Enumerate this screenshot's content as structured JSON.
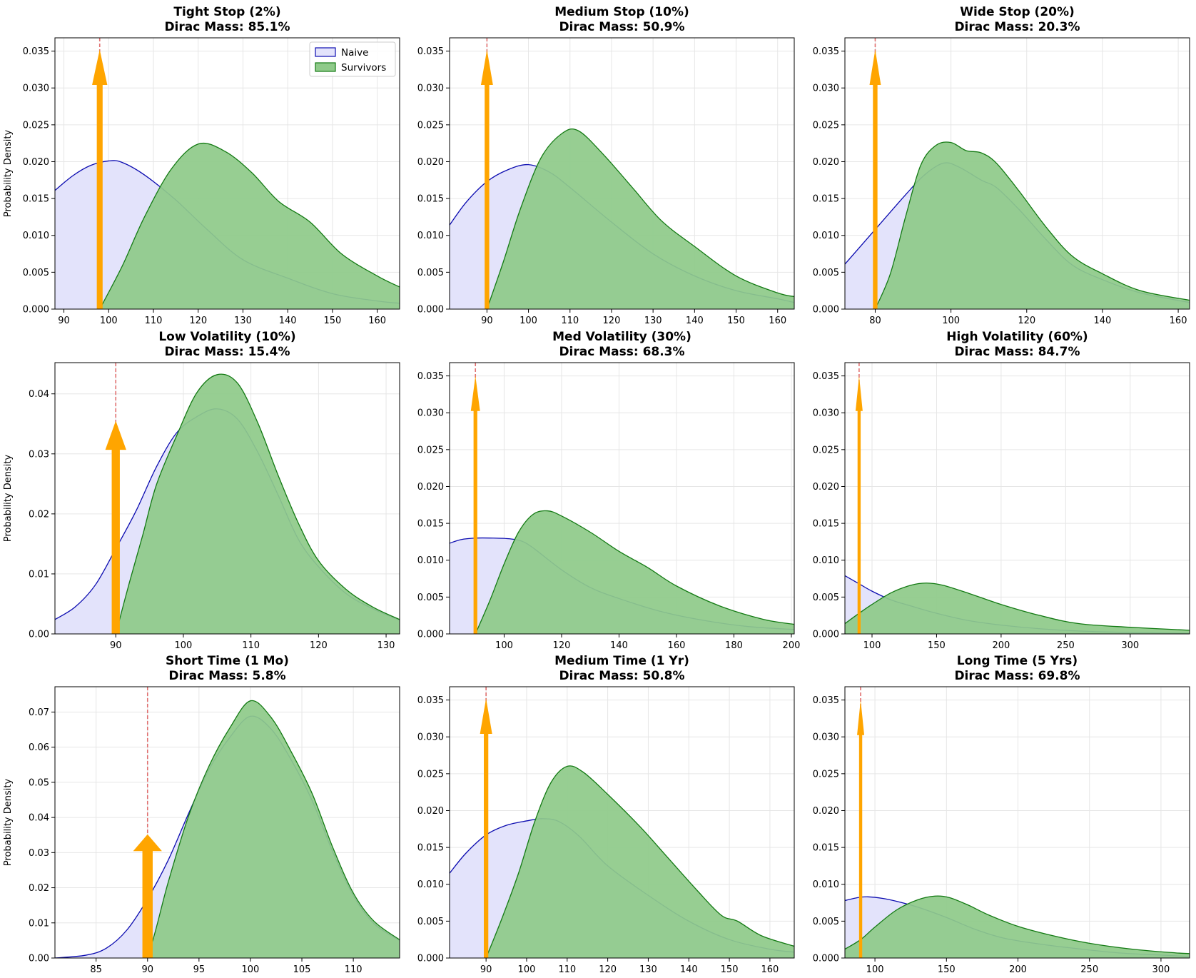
{
  "colors": {
    "naive_line": "#0b0bb0",
    "naive_fill": "#e3e3fb",
    "survivor_line": "#137a13",
    "survivor_fill": "#8fca8a",
    "arrow": "#ffa500",
    "stop_line": "#e07070"
  },
  "chart_data": [
    {
      "type": "area",
      "title": "Tight Stop (2%)",
      "subtitle": "Dirac Mass: 85.1%",
      "ylabel": "Probability Density",
      "show_legend": true,
      "legend_position": "upper-right",
      "legend": [
        "Naive",
        "Survivors"
      ],
      "xlim": [
        88,
        165
      ],
      "ylim": [
        0,
        0.0368
      ],
      "xticks": [
        90,
        100,
        110,
        120,
        130,
        140,
        150,
        160
      ],
      "yticks": [
        0,
        0.005,
        0.01,
        0.015,
        0.02,
        0.025,
        0.03,
        0.035
      ],
      "ytick_labels": [
        "0.000",
        "0.005",
        "0.010",
        "0.015",
        "0.020",
        "0.025",
        "0.030",
        "0.035"
      ],
      "stop": 98,
      "arrow_top": 0.0352,
      "arrow_head_width": 3.4,
      "arrow_shaft_width": 1.3,
      "series": [
        {
          "name": "Naive",
          "x": [
            88,
            92,
            96,
            100,
            103,
            108,
            115,
            122,
            130,
            140,
            150,
            160,
            165
          ],
          "y": [
            0.0161,
            0.0181,
            0.0195,
            0.0201,
            0.0199,
            0.0182,
            0.0148,
            0.0108,
            0.0067,
            0.0042,
            0.0021,
            0.0011,
            0.0008
          ]
        },
        {
          "name": "Survivors",
          "x": [
            88,
            98,
            103,
            108,
            114,
            120,
            126,
            132,
            138,
            145,
            152,
            160,
            165
          ],
          "y": [
            0,
            0,
            0.0058,
            0.0125,
            0.019,
            0.0224,
            0.0214,
            0.0185,
            0.0146,
            0.0118,
            0.0075,
            0.0045,
            0.003
          ]
        }
      ]
    },
    {
      "type": "area",
      "title": "Medium Stop (10%)",
      "subtitle": "Dirac Mass: 50.9%",
      "show_legend": false,
      "legend": [
        "Naive",
        "Survivors"
      ],
      "xlim": [
        81,
        164
      ],
      "ylim": [
        0,
        0.0368
      ],
      "xticks": [
        90,
        100,
        110,
        120,
        130,
        140,
        150,
        160
      ],
      "yticks": [
        0,
        0.005,
        0.01,
        0.015,
        0.02,
        0.025,
        0.03,
        0.035
      ],
      "ytick_labels": [
        "0.000",
        "0.005",
        "0.010",
        "0.015",
        "0.020",
        "0.025",
        "0.030",
        "0.035"
      ],
      "stop": 90,
      "arrow_top": 0.0352,
      "arrow_head_width": 2.9,
      "arrow_shaft_width": 1.1,
      "series": [
        {
          "name": "Naive",
          "x": [
            81,
            85,
            90,
            95,
            100,
            105,
            110,
            120,
            130,
            140,
            150,
            160,
            164
          ],
          "y": [
            0.0114,
            0.0145,
            0.0173,
            0.0189,
            0.0196,
            0.0186,
            0.0165,
            0.0118,
            0.0075,
            0.0045,
            0.0025,
            0.0014,
            0.0009
          ]
        },
        {
          "name": "Survivors",
          "x": [
            81,
            90,
            94,
            98,
            103,
            108,
            112,
            118,
            125,
            132,
            140,
            150,
            160,
            164
          ],
          "y": [
            0,
            0,
            0.0065,
            0.0135,
            0.0205,
            0.0238,
            0.0242,
            0.021,
            0.0165,
            0.012,
            0.0085,
            0.0045,
            0.0022,
            0.0017
          ]
        }
      ]
    },
    {
      "type": "area",
      "title": "Wide Stop (20%)",
      "subtitle": "Dirac Mass: 20.3%",
      "show_legend": false,
      "legend": [
        "Naive",
        "Survivors"
      ],
      "xlim": [
        72,
        163
      ],
      "ylim": [
        0,
        0.0368
      ],
      "xticks": [
        80,
        100,
        120,
        140,
        160
      ],
      "yticks": [
        0,
        0.005,
        0.01,
        0.015,
        0.02,
        0.025,
        0.03,
        0.035
      ],
      "ytick_labels": [
        "0.000",
        "0.005",
        "0.010",
        "0.015",
        "0.020",
        "0.025",
        "0.030",
        "0.035"
      ],
      "stop": 80,
      "arrow_top": 0.0352,
      "arrow_head_width": 3.0,
      "arrow_shaft_width": 1.2,
      "series": [
        {
          "name": "Naive",
          "x": [
            72,
            80,
            88,
            93,
            98,
            102,
            108,
            112,
            118,
            125,
            132,
            140,
            150,
            163
          ],
          "y": [
            0.0061,
            0.0108,
            0.0155,
            0.0182,
            0.0198,
            0.0193,
            0.0175,
            0.0165,
            0.0135,
            0.0095,
            0.006,
            0.004,
            0.0022,
            0.0009
          ]
        },
        {
          "name": "Survivors",
          "x": [
            72,
            80,
            84,
            88,
            92,
            96,
            100,
            104,
            108,
            112,
            118,
            125,
            132,
            140,
            150,
            163
          ],
          "y": [
            0,
            0,
            0.0048,
            0.0125,
            0.0195,
            0.0222,
            0.0226,
            0.0215,
            0.0212,
            0.0198,
            0.016,
            0.0112,
            0.0072,
            0.0048,
            0.0025,
            0.0012
          ]
        }
      ]
    },
    {
      "type": "area",
      "title": "Low Volatility (10%)",
      "subtitle": "Dirac Mass: 15.4%",
      "ylabel": "Probability Density",
      "show_legend": false,
      "legend": [
        "Naive",
        "Survivors"
      ],
      "xlim": [
        81,
        132
      ],
      "ylim": [
        0,
        0.0452
      ],
      "xticks": [
        90,
        100,
        110,
        120,
        130
      ],
      "yticks": [
        0,
        0.01,
        0.02,
        0.03,
        0.04
      ],
      "ytick_labels": [
        "0.00",
        "0.01",
        "0.02",
        "0.03",
        "0.04"
      ],
      "stop": 90,
      "arrow_top": 0.0355,
      "arrow_head_width": 3.1,
      "arrow_shaft_width": 1.2,
      "series": [
        {
          "name": "Naive",
          "x": [
            81,
            84,
            87,
            90,
            93,
            96,
            99,
            102,
            105,
            108,
            111,
            114,
            117,
            120,
            124,
            128,
            132
          ],
          "y": [
            0.0024,
            0.0045,
            0.0082,
            0.0142,
            0.0205,
            0.0278,
            0.0335,
            0.0362,
            0.0375,
            0.0358,
            0.0303,
            0.0232,
            0.0158,
            0.0112,
            0.0068,
            0.0042,
            0.0023
          ]
        },
        {
          "name": "Survivors",
          "x": [
            81,
            90,
            92,
            94,
            96,
            99,
            102,
            105,
            108,
            111,
            114,
            117,
            120,
            124,
            128,
            132
          ],
          "y": [
            0,
            0,
            0.0085,
            0.0165,
            0.0248,
            0.033,
            0.0402,
            0.0432,
            0.0418,
            0.0352,
            0.0265,
            0.0185,
            0.0122,
            0.0075,
            0.0045,
            0.0024
          ]
        }
      ]
    },
    {
      "type": "area",
      "title": "Med Volatility (30%)",
      "subtitle": "Dirac Mass: 68.3%",
      "show_legend": false,
      "legend": [
        "Naive",
        "Survivors"
      ],
      "xlim": [
        81,
        201
      ],
      "ylim": [
        0,
        0.0368
      ],
      "xticks": [
        100,
        120,
        140,
        160,
        180,
        200
      ],
      "yticks": [
        0,
        0.005,
        0.01,
        0.015,
        0.02,
        0.025,
        0.03,
        0.035
      ],
      "ytick_labels": [
        "0.000",
        "0.005",
        "0.010",
        "0.015",
        "0.020",
        "0.025",
        "0.030",
        "0.035"
      ],
      "stop": 90,
      "arrow_top": 0.035,
      "arrow_head_width": 3.2,
      "arrow_shaft_width": 1.3,
      "series": [
        {
          "name": "Naive",
          "x": [
            81,
            85,
            90,
            96,
            102,
            106,
            110,
            120,
            130,
            140,
            155,
            170,
            185,
            201
          ],
          "y": [
            0.0123,
            0.0128,
            0.013,
            0.013,
            0.0129,
            0.0126,
            0.0117,
            0.0087,
            0.0063,
            0.0048,
            0.003,
            0.0018,
            0.001,
            0.0006
          ]
        },
        {
          "name": "Survivors",
          "x": [
            81,
            90,
            95,
            100,
            105,
            110,
            115,
            120,
            130,
            140,
            150,
            160,
            175,
            190,
            201
          ],
          "y": [
            0,
            0,
            0.0045,
            0.0095,
            0.0138,
            0.0162,
            0.0167,
            0.016,
            0.0138,
            0.0112,
            0.009,
            0.0065,
            0.0038,
            0.002,
            0.0013
          ]
        }
      ]
    },
    {
      "type": "area",
      "title": "High Volatility (60%)",
      "subtitle": "Dirac Mass: 84.7%",
      "show_legend": false,
      "legend": [
        "Naive",
        "Survivors"
      ],
      "xlim": [
        79,
        346
      ],
      "ylim": [
        0,
        0.0368
      ],
      "xticks": [
        100,
        150,
        200,
        250,
        300
      ],
      "yticks": [
        0,
        0.005,
        0.01,
        0.015,
        0.02,
        0.025,
        0.03,
        0.035
      ],
      "ytick_labels": [
        "0.000",
        "0.005",
        "0.010",
        "0.015",
        "0.020",
        "0.025",
        "0.030",
        "0.035"
      ],
      "stop": 90,
      "arrow_top": 0.035,
      "arrow_head_width": 5.5,
      "arrow_shaft_width": 2.4,
      "series": [
        {
          "name": "Naive",
          "x": [
            79,
            90,
            100,
            115,
            130,
            150,
            175,
            200,
            230,
            260,
            300,
            346
          ],
          "y": [
            0.0079,
            0.0068,
            0.0058,
            0.0046,
            0.0038,
            0.0028,
            0.0018,
            0.0012,
            0.0007,
            0.0004,
            0.0002,
            0.0001
          ]
        },
        {
          "name": "Survivors",
          "x": [
            79,
            90,
            100,
            115,
            130,
            142,
            155,
            175,
            200,
            230,
            260,
            300,
            346
          ],
          "y": [
            0.0014,
            0.0028,
            0.004,
            0.0056,
            0.0066,
            0.0069,
            0.0066,
            0.0055,
            0.004,
            0.0025,
            0.0014,
            0.0009,
            0.0005
          ]
        }
      ]
    },
    {
      "type": "area",
      "title": "Short Time (1 Mo)",
      "subtitle": "Dirac Mass: 5.8%",
      "ylabel": "Probability Density",
      "show_legend": false,
      "legend": [
        "Naive",
        "Survivors"
      ],
      "xlim": [
        81,
        114.5
      ],
      "ylim": [
        0,
        0.0772
      ],
      "xticks": [
        85,
        90,
        95,
        100,
        105,
        110
      ],
      "yticks": [
        0,
        0.01,
        0.02,
        0.03,
        0.04,
        0.05,
        0.06,
        0.07
      ],
      "ytick_labels": [
        "0.00",
        "0.01",
        "0.02",
        "0.03",
        "0.04",
        "0.05",
        "0.06",
        "0.07"
      ],
      "stop": 90,
      "arrow_top": 0.0352,
      "arrow_head_width": 2.8,
      "arrow_shaft_width": 1.0,
      "series": [
        {
          "name": "Naive",
          "x": [
            81,
            84,
            86,
            88,
            90,
            92,
            94,
            96,
            98,
            100,
            102,
            104,
            106,
            108,
            110,
            112,
            114.5
          ],
          "y": [
            0,
            0.0008,
            0.0028,
            0.008,
            0.0168,
            0.0278,
            0.0412,
            0.0538,
            0.0628,
            0.0688,
            0.0652,
            0.0562,
            0.0448,
            0.0302,
            0.0178,
            0.0098,
            0.005
          ]
        },
        {
          "name": "Survivors",
          "x": [
            81,
            89.6,
            90.5,
            92,
            94,
            96,
            98,
            100,
            102,
            104,
            106,
            108,
            110,
            112,
            114.5
          ],
          "y": [
            0,
            0,
            0.005,
            0.0215,
            0.0405,
            0.0548,
            0.0655,
            0.0732,
            0.0685,
            0.0585,
            0.0468,
            0.0315,
            0.0185,
            0.0105,
            0.0052
          ]
        }
      ]
    },
    {
      "type": "area",
      "title": "Medium Time (1 Yr)",
      "subtitle": "Dirac Mass: 50.8%",
      "show_legend": false,
      "legend": [
        "Naive",
        "Survivors"
      ],
      "xlim": [
        81,
        166
      ],
      "ylim": [
        0,
        0.0368
      ],
      "xticks": [
        90,
        100,
        110,
        120,
        130,
        140,
        150,
        160
      ],
      "yticks": [
        0,
        0.005,
        0.01,
        0.015,
        0.02,
        0.025,
        0.03,
        0.035
      ],
      "ytick_labels": [
        "0.000",
        "0.005",
        "0.010",
        "0.015",
        "0.020",
        "0.025",
        "0.030",
        "0.035"
      ],
      "stop": 90,
      "arrow_top": 0.0352,
      "arrow_head_width": 3.0,
      "arrow_shaft_width": 1.1,
      "series": [
        {
          "name": "Naive",
          "x": [
            81,
            85,
            90,
            95,
            100,
            104,
            108,
            113,
            120,
            130,
            140,
            150,
            160,
            166
          ],
          "y": [
            0.0115,
            0.0142,
            0.0167,
            0.018,
            0.0186,
            0.0189,
            0.0185,
            0.0165,
            0.0125,
            0.0085,
            0.005,
            0.0025,
            0.0012,
            0.0008
          ]
        },
        {
          "name": "Survivors",
          "x": [
            81,
            90,
            94,
            98,
            102,
            106,
            110,
            114,
            120,
            128,
            135,
            142,
            148,
            152,
            158,
            166
          ],
          "y": [
            0,
            0,
            0.0055,
            0.0115,
            0.0185,
            0.0238,
            0.026,
            0.0252,
            0.0222,
            0.0178,
            0.0135,
            0.0092,
            0.0058,
            0.005,
            0.003,
            0.0016
          ]
        }
      ]
    },
    {
      "type": "area",
      "title": "Long Time (5 Yrs)",
      "subtitle": "Dirac Mass: 69.8%",
      "show_legend": false,
      "legend": [
        "Naive",
        "Survivors"
      ],
      "xlim": [
        79,
        320
      ],
      "ylim": [
        0,
        0.0368
      ],
      "xticks": [
        100,
        150,
        200,
        250,
        300
      ],
      "yticks": [
        0,
        0.005,
        0.01,
        0.015,
        0.02,
        0.025,
        0.03,
        0.035
      ],
      "ytick_labels": [
        "0.000",
        "0.005",
        "0.010",
        "0.015",
        "0.020",
        "0.025",
        "0.030",
        "0.035"
      ],
      "stop": 90,
      "arrow_top": 0.035,
      "arrow_head_width": 5.0,
      "arrow_shaft_width": 2.2,
      "series": [
        {
          "name": "Naive",
          "x": [
            79,
            88,
            95,
            105,
            115,
            130,
            150,
            170,
            190,
            215,
            240,
            270,
            300,
            320
          ],
          "y": [
            0.0078,
            0.0082,
            0.0083,
            0.0081,
            0.0077,
            0.0069,
            0.0055,
            0.0039,
            0.0027,
            0.0019,
            0.0013,
            0.0007,
            0.0004,
            0.0002
          ]
        },
        {
          "name": "Survivors",
          "x": [
            79,
            90,
            100,
            115,
            130,
            142,
            152,
            165,
            180,
            200,
            225,
            250,
            280,
            310,
            320
          ],
          "y": [
            0.0012,
            0.0025,
            0.0042,
            0.0065,
            0.0079,
            0.0084,
            0.0082,
            0.0072,
            0.0058,
            0.0043,
            0.003,
            0.002,
            0.0012,
            0.0007,
            0.0006
          ]
        }
      ]
    }
  ]
}
